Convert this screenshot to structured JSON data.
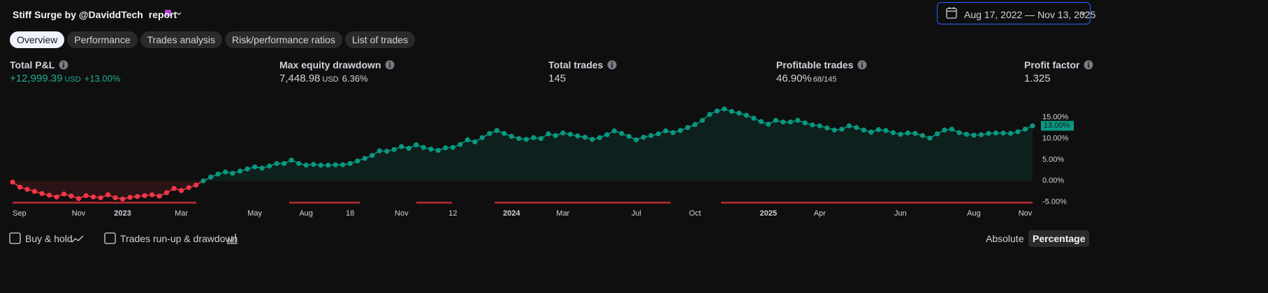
{
  "header": {
    "title": "Stiff Surge by @DaviddTech",
    "title_suffix": "report",
    "date_range": "Aug 17, 2022 — Nov 13, 2025"
  },
  "tabs": [
    "Overview",
    "Performance",
    "Trades analysis",
    "Risk/performance ratios",
    "List of trades"
  ],
  "active_tab": 0,
  "metrics": [
    {
      "label": "Total P&L",
      "value": "+12,999.39",
      "unit": "USD",
      "extra": "+13.00%",
      "color": "#22ab94"
    },
    {
      "label": "Max equity drawdown",
      "value": "7,448.98",
      "unit": "USD",
      "extra": "6.36%"
    },
    {
      "label": "Total trades",
      "value": "145"
    },
    {
      "label": "Profitable trades",
      "value": "46.90%",
      "extra": "68/145"
    },
    {
      "label": "Profit factor",
      "value": "1.325"
    }
  ],
  "chart_data": {
    "type": "line",
    "categories": [
      "Sep",
      null,
      null,
      null,
      null,
      null,
      null,
      null,
      null,
      "Nov",
      null,
      null,
      null,
      null,
      null,
      "2023",
      null,
      null,
      null,
      null,
      null,
      null,
      null,
      "Mar",
      null,
      null,
      null,
      null,
      null,
      null,
      null,
      null,
      null,
      "May",
      null,
      null,
      null,
      null,
      null,
      null,
      "Aug",
      null,
      null,
      null,
      null,
      null,
      "18",
      null,
      null,
      null,
      null,
      null,
      null,
      "Nov",
      null,
      null,
      null,
      null,
      null,
      null,
      "12",
      null,
      null,
      null,
      null,
      null,
      null,
      null,
      "2024",
      null,
      null,
      null,
      null,
      null,
      null,
      "Mar",
      null,
      null,
      null,
      null,
      null,
      null,
      null,
      null,
      null,
      "Jul",
      null,
      null,
      null,
      null,
      null,
      null,
      null,
      "Oct",
      null,
      null,
      null,
      null,
      null,
      null,
      null,
      null,
      null,
      "2025",
      null,
      null,
      null,
      null,
      null,
      null,
      "Apr",
      null,
      null,
      null,
      null,
      null,
      null,
      null,
      null,
      null,
      null,
      "Jun",
      null,
      null,
      null,
      null,
      null,
      null,
      null,
      null,
      null,
      "Aug",
      null,
      null,
      null,
      null,
      null,
      null,
      "Nov",
      null
    ],
    "values": [
      -0.3,
      -1.5,
      -2.0,
      -2.5,
      -3.0,
      -3.4,
      -3.8,
      -3.1,
      -3.6,
      -4.2,
      -3.5,
      -3.8,
      -4.0,
      -3.3,
      -4.0,
      -4.3,
      -3.9,
      -3.7,
      -3.5,
      -3.3,
      -3.6,
      -2.8,
      -1.8,
      -2.3,
      -1.6,
      -1.0,
      0,
      0.9,
      1.6,
      2.1,
      1.8,
      2.3,
      2.8,
      3.3,
      3.0,
      3.5,
      4.1,
      4.1,
      4.9,
      4.1,
      3.7,
      3.9,
      3.7,
      3.7,
      3.8,
      3.8,
      4.1,
      4.7,
      5.3,
      6.0,
      7.1,
      7.0,
      7.4,
      8.1,
      7.7,
      8.5,
      7.9,
      7.5,
      7.2,
      7.8,
      7.9,
      8.6,
      9.7,
      9.2,
      10.2,
      11.2,
      11.9,
      11.2,
      10.5,
      10.0,
      9.8,
      10.2,
      10.0,
      11.1,
      10.7,
      11.3,
      11.0,
      10.6,
      10.3,
      9.8,
      10.2,
      10.9,
      11.8,
      11.2,
      10.5,
      9.7,
      10.3,
      10.7,
      11.1,
      11.8,
      11.4,
      11.9,
      12.6,
      13.3,
      14.3,
      15.7,
      16.5,
      17.0,
      16.4,
      16.0,
      15.5,
      14.8,
      14.0,
      13.4,
      14.3,
      13.9,
      13.9,
      14.3,
      13.7,
      13.2,
      13.0,
      12.5,
      12.0,
      12.2,
      13.0,
      12.6,
      12.0,
      11.5,
      12.1,
      11.9,
      11.4,
      11.0,
      11.3,
      11.2,
      10.7,
      10.1,
      11.1,
      12.0,
      12.2,
      11.4,
      11.0,
      10.8,
      10.9,
      11.2,
      11.3,
      11.3,
      11.2,
      11.6,
      12.2,
      13.0
    ],
    "end_label": "13.00%",
    "colors": {
      "positive": "#089981",
      "negative": "#f23645"
    },
    "ylim": [
      -5.4,
      18
    ],
    "yticks": [
      {
        "value": 15,
        "label": "15.00%"
      },
      {
        "value": 10,
        "label": "10.00%"
      },
      {
        "value": 5,
        "label": "5.00%"
      },
      {
        "value": 0,
        "label": "0.00%"
      },
      {
        "value": -5,
        "label": "-5.00%"
      }
    ]
  },
  "footer": {
    "checkboxes": [
      "Buy & hold",
      "Trades run-up & drawdown"
    ],
    "toggle": [
      "Absolute",
      "Percentage"
    ],
    "toggle_active": 1
  }
}
